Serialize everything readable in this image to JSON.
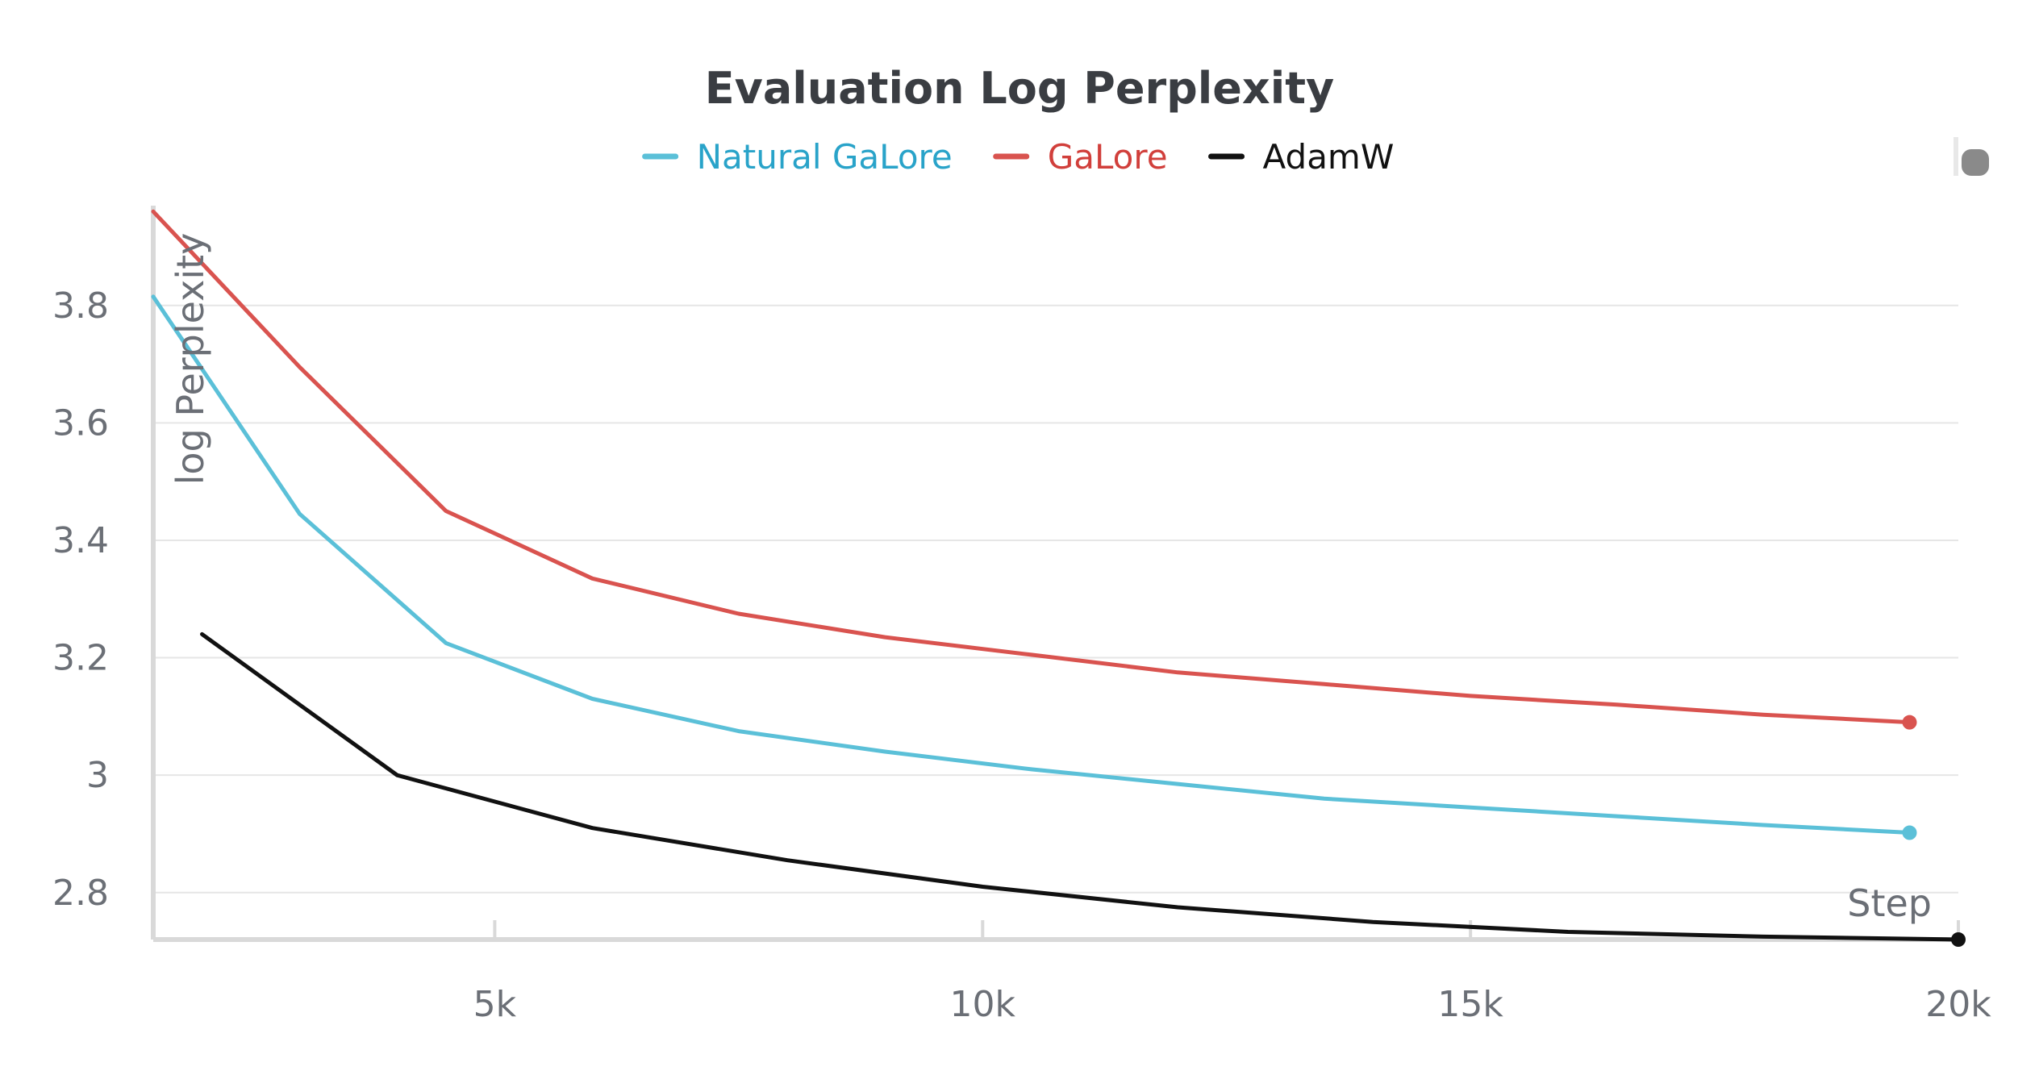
{
  "chart_data": {
    "type": "line",
    "title": "Evaluation Log Perplexity",
    "xlabel": "Step",
    "ylabel": "log Perplexity",
    "xlim": [
      1500,
      20000
    ],
    "ylim": [
      2.72,
      3.97
    ],
    "xticks": [
      5000,
      10000,
      15000,
      20000
    ],
    "xtick_labels": [
      "5k",
      "10k",
      "15k",
      "20k"
    ],
    "yticks": [
      2.8,
      3.0,
      3.2,
      3.4,
      3.6,
      3.8
    ],
    "ytick_labels": [
      "2.8",
      "3",
      "3.2",
      "3.4",
      "3.6",
      "3.8"
    ],
    "grid": true,
    "legend_position": "top-center",
    "series": [
      {
        "name": "Natural GaLore",
        "color": "#5bc0d8",
        "legend_text_color": "#29a3c9",
        "x": [
          1500,
          3000,
          4500,
          6000,
          7500,
          9000,
          10500,
          12000,
          13500,
          15000,
          16500,
          18000,
          19500
        ],
        "y": [
          3.815,
          3.445,
          3.225,
          3.13,
          3.075,
          3.04,
          3.01,
          2.985,
          2.96,
          2.945,
          2.93,
          2.915,
          2.902
        ],
        "end_marker": true
      },
      {
        "name": "GaLore",
        "color": "#d9534f",
        "legend_text_color": "#d13f3b",
        "x": [
          1500,
          3000,
          4500,
          6000,
          7500,
          9000,
          10500,
          12000,
          13500,
          15000,
          16500,
          18000,
          19500
        ],
        "y": [
          3.96,
          3.695,
          3.45,
          3.335,
          3.275,
          3.235,
          3.205,
          3.175,
          3.155,
          3.135,
          3.12,
          3.103,
          3.09
        ],
        "end_marker": true
      },
      {
        "name": "AdamW",
        "color": "#111111",
        "legend_text_color": "#111111",
        "x": [
          2000,
          4000,
          6000,
          8000,
          10000,
          12000,
          14000,
          16000,
          18000,
          20000
        ],
        "y": [
          3.24,
          3.0,
          2.91,
          2.855,
          2.81,
          2.775,
          2.75,
          2.733,
          2.725,
          2.72
        ],
        "end_marker": true
      }
    ]
  }
}
